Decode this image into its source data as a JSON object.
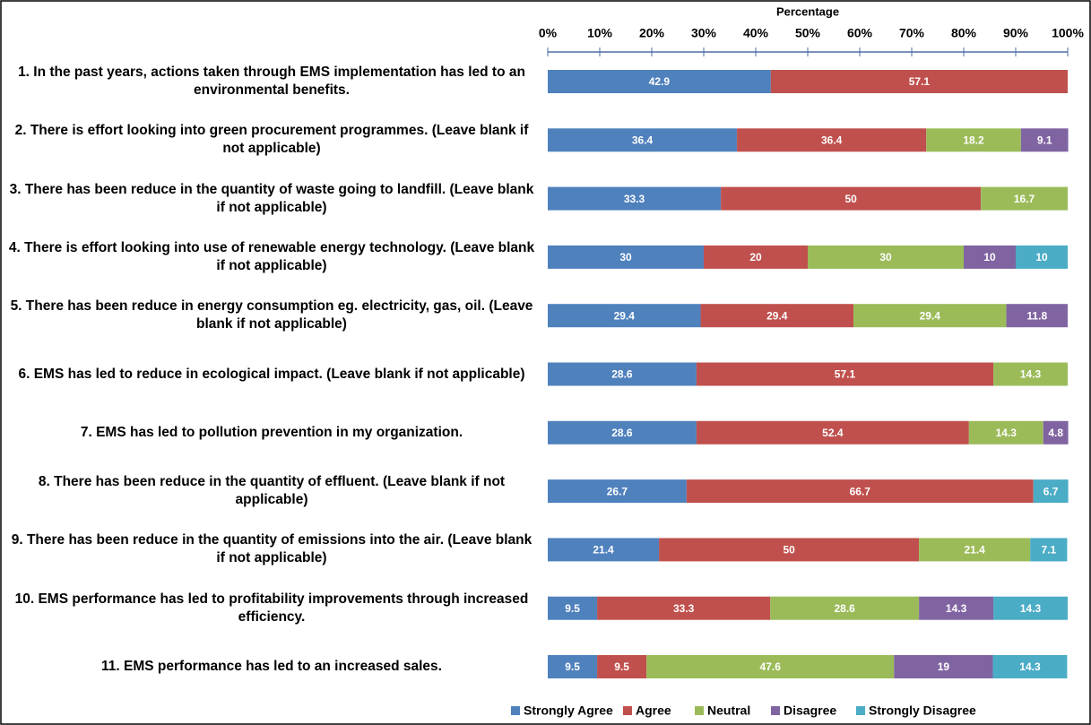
{
  "chart_data": {
    "type": "stacked_bar_horizontal",
    "x_label": "Percentage",
    "categories": [
      "1. In the past years, actions taken through EMS implementation has led to an environmental benefits.",
      "2. There is effort looking into green procurement programmes. (Leave blank if not applicable)",
      "3. There has been reduce in the quantity of waste going to landfill. (Leave blank if not applicable)",
      "4. There is effort looking into use of renewable energy technology. (Leave blank if not applicable)",
      "5. There has been reduce in energy consumption eg. electricity, gas, oil. (Leave blank if not applicable)",
      "6. EMS has led to reduce in ecological impact.  (Leave blank if not applicable)",
      "7.  EMS has led to pollution prevention in my organization.",
      "8. There has been reduce in the quantity of effluent.  (Leave blank if not applicable)",
      "9. There has been reduce in the quantity of emissions into the air. (Leave blank if not applicable)",
      "10. EMS performance has led to profitability improvements through increased efficiency.",
      "11. EMS performance has led to an increased sales."
    ],
    "series": [
      {
        "name": "Strongly Agree",
        "color": "#4f81bd",
        "values": [
          42.9,
          36.4,
          33.3,
          30,
          29.4,
          28.6,
          28.6,
          26.7,
          21.4,
          9.5,
          9.5
        ]
      },
      {
        "name": "Agree",
        "color": "#c0504d",
        "values": [
          57.1,
          36.4,
          50,
          20,
          29.4,
          57.1,
          52.4,
          66.7,
          50,
          33.3,
          9.5
        ]
      },
      {
        "name": "Neutral",
        "color": "#9bbb59",
        "values": [
          null,
          18.2,
          16.7,
          30,
          29.4,
          14.3,
          14.3,
          null,
          21.4,
          28.6,
          47.6
        ]
      },
      {
        "name": "Disagree",
        "color": "#8064a2",
        "values": [
          null,
          9.1,
          null,
          10,
          11.8,
          null,
          4.8,
          null,
          null,
          14.3,
          19
        ]
      },
      {
        "name": "Strongly Disagree",
        "color": "#4bacc6",
        "values": [
          null,
          null,
          null,
          10,
          null,
          null,
          null,
          6.7,
          7.1,
          14.3,
          14.3
        ]
      }
    ],
    "xlim": [
      0,
      100
    ],
    "xticks": [
      {
        "value": 0,
        "label": "0%"
      },
      {
        "value": 10,
        "label": "10%"
      },
      {
        "value": 20,
        "label": "20%"
      },
      {
        "value": 30,
        "label": "30%"
      },
      {
        "value": 40,
        "label": "40%"
      },
      {
        "value": 50,
        "label": "50%"
      },
      {
        "value": 60,
        "label": "60%"
      },
      {
        "value": 70,
        "label": "70%"
      },
      {
        "value": 80,
        "label": "80%"
      },
      {
        "value": 90,
        "label": "90%"
      },
      {
        "value": 100,
        "label": "100%"
      }
    ],
    "legend": "bottom"
  }
}
